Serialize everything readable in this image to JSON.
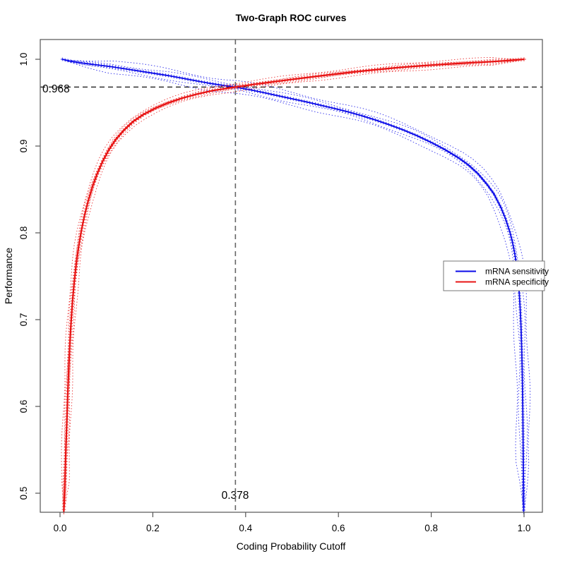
{
  "title": "Two-Graph ROC curves",
  "colors": {
    "sensitivity": "#0a0ae8",
    "specificity": "#e81414",
    "axis": "#555555",
    "threshold_h_line": "#111111",
    "threshold_v_line": "#666666",
    "legend_border": "#777777",
    "background": "#ffffff"
  },
  "chart_data": {
    "type": "line",
    "title": "Two-Graph ROC curves",
    "xlabel": "Coding Probability Cutoff",
    "ylabel": "Performance",
    "xlim": [
      0.0,
      1.0
    ],
    "ylim": [
      0.478,
      1.005
    ],
    "grid": false,
    "xticks": {
      "values": [
        0.0,
        0.2,
        0.4,
        0.6,
        0.8,
        1.0
      ],
      "labels": [
        "0.0",
        "0.2",
        "0.4",
        "0.6",
        "0.8",
        "1.0"
      ]
    },
    "yticks": {
      "values": [
        0.5,
        0.6,
        0.7,
        0.8,
        0.9,
        1.0
      ],
      "labels": [
        "0.5",
        "0.6",
        "0.7",
        "0.8",
        "0.9",
        "1.0"
      ]
    },
    "threshold": {
      "x": 0.378,
      "y": 0.968,
      "x_label": "0.378",
      "y_label": "0.968"
    },
    "legend": {
      "position": "middle-right",
      "entries": [
        {
          "label": "mRNA sensitivity",
          "color": "#0a0ae8"
        },
        {
          "label": "mRNA specificity",
          "color": "#e81414"
        }
      ]
    },
    "series": [
      {
        "name": "mRNA sensitivity",
        "color": "#0a0ae8",
        "style": "solid line with dense plus markers and dotted confidence envelopes",
        "points": [
          [
            0.005,
            1.0
          ],
          [
            0.02,
            0.998
          ],
          [
            0.05,
            0.9955
          ],
          [
            0.08,
            0.9935
          ],
          [
            0.11,
            0.9915
          ],
          [
            0.14,
            0.989
          ],
          [
            0.17,
            0.9865
          ],
          [
            0.2,
            0.984
          ],
          [
            0.23,
            0.9815
          ],
          [
            0.26,
            0.9785
          ],
          [
            0.29,
            0.9755
          ],
          [
            0.32,
            0.9725
          ],
          [
            0.35,
            0.97
          ],
          [
            0.378,
            0.968
          ],
          [
            0.41,
            0.9648
          ],
          [
            0.44,
            0.9615
          ],
          [
            0.47,
            0.958
          ],
          [
            0.5,
            0.9545
          ],
          [
            0.53,
            0.951
          ],
          [
            0.56,
            0.9472
          ],
          [
            0.59,
            0.9435
          ],
          [
            0.62,
            0.9395
          ],
          [
            0.65,
            0.935
          ],
          [
            0.68,
            0.93
          ],
          [
            0.71,
            0.9245
          ],
          [
            0.74,
            0.9185
          ],
          [
            0.77,
            0.9118
          ],
          [
            0.8,
            0.9042
          ],
          [
            0.83,
            0.8958
          ],
          [
            0.86,
            0.886
          ],
          [
            0.88,
            0.8782
          ],
          [
            0.9,
            0.8685
          ],
          [
            0.92,
            0.856
          ],
          [
            0.935,
            0.845
          ],
          [
            0.95,
            0.8295
          ],
          [
            0.96,
            0.8165
          ],
          [
            0.97,
            0.8
          ],
          [
            0.975,
            0.7895
          ],
          [
            0.98,
            0.776
          ],
          [
            0.984,
            0.762
          ],
          [
            0.987,
            0.7485
          ],
          [
            0.99,
            0.7285
          ],
          [
            0.992,
            0.7105
          ],
          [
            0.9935,
            0.692
          ],
          [
            0.995,
            0.6655
          ],
          [
            0.996,
            0.6425
          ],
          [
            0.9968,
            0.618
          ],
          [
            0.9975,
            0.586
          ],
          [
            0.998,
            0.558
          ],
          [
            0.9985,
            0.5285
          ],
          [
            0.999,
            0.498
          ],
          [
            0.9993,
            0.478
          ]
        ]
      },
      {
        "name": "mRNA specificity",
        "color": "#e81414",
        "style": "solid line with dense plus markers and dotted confidence envelopes",
        "points": [
          [
            0.008,
            0.478
          ],
          [
            0.009,
            0.4915
          ],
          [
            0.01,
            0.507
          ],
          [
            0.0115,
            0.531
          ],
          [
            0.013,
            0.5555
          ],
          [
            0.015,
            0.589
          ],
          [
            0.017,
            0.62
          ],
          [
            0.019,
            0.6475
          ],
          [
            0.0215,
            0.6745
          ],
          [
            0.024,
            0.699
          ],
          [
            0.027,
            0.7215
          ],
          [
            0.0305,
            0.7425
          ],
          [
            0.035,
            0.7645
          ],
          [
            0.04,
            0.7838
          ],
          [
            0.046,
            0.8025
          ],
          [
            0.053,
            0.8205
          ],
          [
            0.061,
            0.8375
          ],
          [
            0.07,
            0.8535
          ],
          [
            0.08,
            0.868
          ],
          [
            0.092,
            0.8825
          ],
          [
            0.105,
            0.8955
          ],
          [
            0.12,
            0.9075
          ],
          [
            0.138,
            0.9185
          ],
          [
            0.158,
            0.9285
          ],
          [
            0.18,
            0.9365
          ],
          [
            0.205,
            0.9435
          ],
          [
            0.232,
            0.9495
          ],
          [
            0.262,
            0.955
          ],
          [
            0.295,
            0.9598
          ],
          [
            0.33,
            0.964
          ],
          [
            0.378,
            0.968
          ],
          [
            0.42,
            0.9712
          ],
          [
            0.46,
            0.974
          ],
          [
            0.5,
            0.9768
          ],
          [
            0.545,
            0.9798
          ],
          [
            0.59,
            0.9828
          ],
          [
            0.635,
            0.9855
          ],
          [
            0.68,
            0.988
          ],
          [
            0.73,
            0.9905
          ],
          [
            0.78,
            0.9925
          ],
          [
            0.83,
            0.9943
          ],
          [
            0.88,
            0.9958
          ],
          [
            0.93,
            0.9972
          ],
          [
            0.97,
            0.9987
          ],
          [
            1.0,
            1.0
          ]
        ]
      }
    ]
  }
}
